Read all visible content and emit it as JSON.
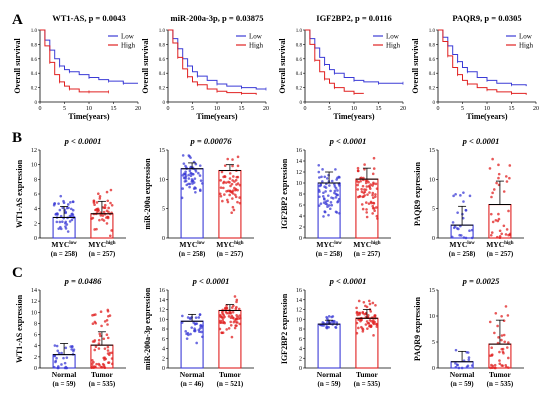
{
  "panels": [
    {
      "letter": "A"
    },
    {
      "letter": "B"
    },
    {
      "letter": "C"
    }
  ],
  "chart_data": [
    {
      "type": "line",
      "panel": "A",
      "row": 0,
      "col": 0,
      "gene": "WT1-AS",
      "p_text": "p = 0.0043",
      "xlabel": "Time(years)",
      "ylabel": "Overall survival",
      "xlim": [
        0,
        20
      ],
      "ylim": [
        0,
        1.0
      ],
      "xticks": [
        0,
        5,
        10,
        15,
        20
      ],
      "yticks": [
        0,
        0.2,
        0.4,
        0.6,
        0.8,
        1.0
      ],
      "series": [
        {
          "name": "Low",
          "color": "#3b3bd6",
          "x": [
            0,
            1,
            2,
            3,
            4,
            5,
            6,
            8,
            10,
            12,
            14,
            15,
            17,
            20
          ],
          "y": [
            1.0,
            0.86,
            0.72,
            0.6,
            0.5,
            0.45,
            0.42,
            0.38,
            0.34,
            0.31,
            0.29,
            0.29,
            0.26,
            0.26
          ]
        },
        {
          "name": "High",
          "color": "#e02020",
          "x": [
            0,
            1,
            2,
            3,
            4,
            5,
            6,
            8,
            10,
            12,
            14
          ],
          "y": [
            1.0,
            0.78,
            0.55,
            0.38,
            0.28,
            0.22,
            0.18,
            0.14,
            0.14,
            0.14,
            0.14
          ]
        }
      ]
    },
    {
      "type": "line",
      "panel": "A",
      "row": 0,
      "col": 1,
      "gene": "miR-200a-3p",
      "p_text": "p = 0.03875",
      "xlabel": "Time(years)",
      "ylabel": "Overall survival",
      "xlim": [
        0,
        20
      ],
      "ylim": [
        0,
        1.0
      ],
      "xticks": [
        0,
        5,
        10,
        15,
        20
      ],
      "yticks": [
        0,
        0.2,
        0.4,
        0.6,
        0.8,
        1.0
      ],
      "series": [
        {
          "name": "Low",
          "color": "#3b3bd6",
          "x": [
            0,
            1,
            2,
            3,
            4,
            5,
            6,
            8,
            10,
            12,
            15,
            18,
            20
          ],
          "y": [
            1.0,
            0.88,
            0.74,
            0.6,
            0.5,
            0.42,
            0.36,
            0.3,
            0.25,
            0.22,
            0.2,
            0.18,
            0.18
          ]
        },
        {
          "name": "High",
          "color": "#e02020",
          "x": [
            0,
            1,
            2,
            3,
            4,
            5,
            6,
            8,
            10,
            12,
            15,
            18
          ],
          "y": [
            1.0,
            0.82,
            0.62,
            0.46,
            0.35,
            0.28,
            0.24,
            0.18,
            0.15,
            0.13,
            0.12,
            0.1
          ]
        }
      ]
    },
    {
      "type": "line",
      "panel": "A",
      "row": 0,
      "col": 2,
      "gene": "IGF2BP2",
      "p_text": "p = 0.0116",
      "xlabel": "Time(years)",
      "ylabel": "Overall survival",
      "xlim": [
        0,
        20
      ],
      "ylim": [
        0,
        1.0
      ],
      "xticks": [
        0,
        5,
        10,
        15,
        20
      ],
      "yticks": [
        0,
        0.2,
        0.4,
        0.6,
        0.8,
        1.0
      ],
      "series": [
        {
          "name": "Low",
          "color": "#3b3bd6",
          "x": [
            0,
            1,
            2,
            3,
            4,
            5,
            6,
            8,
            10,
            12,
            15,
            18,
            20
          ],
          "y": [
            1.0,
            0.88,
            0.75,
            0.62,
            0.52,
            0.45,
            0.4,
            0.34,
            0.3,
            0.28,
            0.26,
            0.26,
            0.26
          ]
        },
        {
          "name": "High",
          "color": "#e02020",
          "x": [
            0,
            1,
            2,
            3,
            4,
            5,
            6,
            8,
            10,
            12
          ],
          "y": [
            1.0,
            0.8,
            0.58,
            0.42,
            0.32,
            0.26,
            0.2,
            0.15,
            0.12,
            0.12
          ]
        }
      ]
    },
    {
      "type": "line",
      "panel": "A",
      "row": 0,
      "col": 3,
      "gene": "PAQR9",
      "p_text": "p = 0.0305",
      "xlabel": "Time(years)",
      "ylabel": "Overall survival",
      "xlim": [
        0,
        20
      ],
      "ylim": [
        0,
        1.0
      ],
      "xticks": [
        0,
        5,
        10,
        15,
        20
      ],
      "yticks": [
        0,
        0.2,
        0.4,
        0.6,
        0.8,
        1.0
      ],
      "series": [
        {
          "name": "Low",
          "color": "#3b3bd6",
          "x": [
            0,
            1,
            2,
            3,
            4,
            5,
            6,
            8,
            10,
            12,
            15,
            18
          ],
          "y": [
            1.0,
            0.9,
            0.78,
            0.66,
            0.56,
            0.48,
            0.42,
            0.34,
            0.3,
            0.26,
            0.24,
            0.22
          ]
        },
        {
          "name": "High",
          "color": "#e02020",
          "x": [
            0,
            1,
            2,
            3,
            4,
            5,
            6,
            8,
            10,
            12,
            15,
            18
          ],
          "y": [
            1.0,
            0.84,
            0.64,
            0.48,
            0.38,
            0.3,
            0.25,
            0.2,
            0.17,
            0.14,
            0.12,
            0.1
          ]
        }
      ]
    },
    {
      "type": "bar",
      "panel": "B",
      "row": 1,
      "col": 0,
      "p_text": "p < 0.0001",
      "ylabel": "WT1-AS expression",
      "ylim": [
        0,
        12
      ],
      "yticks": [
        0,
        2,
        4,
        6,
        8,
        10,
        12
      ],
      "groups": [
        {
          "label": "MYC",
          "sup": "low",
          "n": "(n = 258)",
          "color": "#3b3bd6",
          "mean": 2.8,
          "err": 1.5,
          "spread_lo": 0.2,
          "spread_hi": 6.0,
          "count": 50
        },
        {
          "label": "MYC",
          "sup": "high",
          "n": "(n = 257)",
          "color": "#e02020",
          "mean": 3.3,
          "err": 1.7,
          "spread_lo": 0.2,
          "spread_hi": 7.0,
          "count": 50
        }
      ]
    },
    {
      "type": "bar",
      "panel": "B",
      "row": 1,
      "col": 1,
      "p_text": "p = 0.00076",
      "ylabel": "miR-200a expression",
      "ylim": [
        0,
        15
      ],
      "yticks": [
        0,
        5,
        10,
        15
      ],
      "groups": [
        {
          "label": "MYC",
          "sup": "low",
          "n": "(n = 258)",
          "color": "#3b3bd6",
          "mean": 11.8,
          "err": 1.0,
          "spread_lo": 6.0,
          "spread_hi": 15.0,
          "count": 60
        },
        {
          "label": "MYC",
          "sup": "high",
          "n": "(n = 257)",
          "color": "#e02020",
          "mean": 11.5,
          "err": 1.0,
          "spread_lo": 4.0,
          "spread_hi": 14.5,
          "count": 60
        }
      ]
    },
    {
      "type": "bar",
      "panel": "B",
      "row": 1,
      "col": 2,
      "p_text": "p < 0.0001",
      "ylabel": "IGF2BP2 expression",
      "ylim": [
        0,
        16
      ],
      "yticks": [
        0,
        2,
        4,
        6,
        8,
        10,
        12,
        14,
        16
      ],
      "groups": [
        {
          "label": "MYC",
          "sup": "low",
          "n": "(n = 258)",
          "color": "#3b3bd6",
          "mean": 10.0,
          "err": 2.0,
          "spread_lo": 3.0,
          "spread_hi": 14.0,
          "count": 70
        },
        {
          "label": "MYC",
          "sup": "high",
          "n": "(n = 257)",
          "color": "#e02020",
          "mean": 10.7,
          "err": 2.0,
          "spread_lo": 3.0,
          "spread_hi": 15.0,
          "count": 70
        }
      ]
    },
    {
      "type": "bar",
      "panel": "B",
      "row": 1,
      "col": 3,
      "p_text": "p < 0.0001",
      "ylabel": "PAQR9 expression",
      "ylim": [
        0,
        15
      ],
      "yticks": [
        0,
        5,
        10,
        15
      ],
      "groups": [
        {
          "label": "MYC",
          "sup": "low",
          "n": "(n = 258)",
          "color": "#3b3bd6",
          "mean": 2.2,
          "err": 3.2,
          "spread_lo": 0,
          "spread_hi": 8.0,
          "count": 25
        },
        {
          "label": "MYC",
          "sup": "high",
          "n": "(n = 257)",
          "color": "#e02020",
          "mean": 5.7,
          "err": 4.0,
          "spread_lo": 0,
          "spread_hi": 13.5,
          "count": 35
        }
      ]
    },
    {
      "type": "bar",
      "panel": "C",
      "row": 2,
      "col": 0,
      "p_text": "p = 0.0486",
      "ylabel": "WT1-AS expression",
      "ylim": [
        0,
        14
      ],
      "yticks": [
        0,
        2,
        4,
        6,
        8,
        10,
        12,
        14
      ],
      "groups": [
        {
          "label": "Normal",
          "sup": "",
          "n": "(n = 59)",
          "color": "#3b3bd6",
          "mean": 2.4,
          "err": 2.0,
          "spread_lo": 0,
          "spread_hi": 6.0,
          "count": 30
        },
        {
          "label": "Tumor",
          "sup": "",
          "n": "(n = 535)",
          "color": "#e02020",
          "mean": 4.1,
          "err": 2.4,
          "spread_lo": 0,
          "spread_hi": 10.5,
          "count": 60
        }
      ]
    },
    {
      "type": "bar",
      "panel": "C",
      "row": 2,
      "col": 1,
      "p_text": "p < 0.0001",
      "ylabel": "miR-200a-3p expression",
      "ylim": [
        0,
        16
      ],
      "yticks": [
        0,
        2,
        4,
        6,
        8,
        10,
        12,
        14,
        16
      ],
      "groups": [
        {
          "label": "Normal",
          "sup": "",
          "n": "(n = 46)",
          "color": "#3b3bd6",
          "mean": 9.6,
          "err": 1.4,
          "spread_lo": 5.0,
          "spread_hi": 12.0,
          "count": 35
        },
        {
          "label": "Tumor",
          "sup": "",
          "n": "(n = 521)",
          "color": "#e02020",
          "mean": 11.8,
          "err": 1.2,
          "spread_lo": 6.0,
          "spread_hi": 15.0,
          "count": 70
        }
      ]
    },
    {
      "type": "bar",
      "panel": "C",
      "row": 2,
      "col": 2,
      "p_text": "p < 0.0001",
      "ylabel": "IGF2BP2 expression",
      "ylim": [
        0,
        16
      ],
      "yticks": [
        0,
        2,
        4,
        6,
        8,
        10,
        12,
        14,
        16
      ],
      "groups": [
        {
          "label": "Normal",
          "sup": "",
          "n": "(n = 59)",
          "color": "#3b3bd6",
          "mean": 9.0,
          "err": 0.8,
          "spread_lo": 7.5,
          "spread_hi": 11.0,
          "count": 30
        },
        {
          "label": "Tumor",
          "sup": "",
          "n": "(n = 535)",
          "color": "#e02020",
          "mean": 10.2,
          "err": 1.8,
          "spread_lo": 6.0,
          "spread_hi": 15.0,
          "count": 70
        }
      ]
    },
    {
      "type": "bar",
      "panel": "C",
      "row": 2,
      "col": 3,
      "p_text": "p = 0.0025",
      "ylabel": "PAQR9 expression",
      "ylim": [
        0,
        15
      ],
      "yticks": [
        0,
        5,
        10,
        15
      ],
      "groups": [
        {
          "label": "Normal",
          "sup": "",
          "n": "(n = 59)",
          "color": "#3b3bd6",
          "mean": 1.2,
          "err": 2.0,
          "spread_lo": 0,
          "spread_hi": 4.0,
          "count": 15
        },
        {
          "label": "Tumor",
          "sup": "",
          "n": "(n = 535)",
          "color": "#e02020",
          "mean": 4.6,
          "err": 4.6,
          "spread_lo": 0,
          "spread_hi": 12.0,
          "count": 40
        }
      ]
    }
  ]
}
